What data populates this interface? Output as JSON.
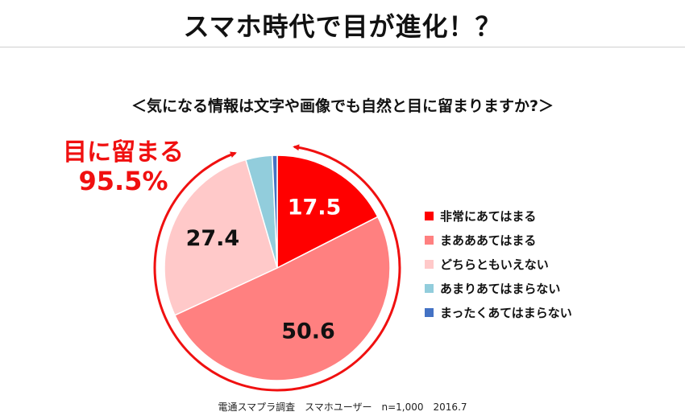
{
  "page": {
    "title": "スマホ時代で目が進化！？",
    "source_note": "電通スマプラ調査　スマホユーザー　n=1,000　2016.7"
  },
  "callout": {
    "label": "目に留まる",
    "value": "95.5%",
    "color": "#f01010"
  },
  "chart_data": {
    "type": "pie",
    "title": "＜気になる情報は文字や画像でも自然と目に留まりますか?＞",
    "start": "12 o'clock, clockwise",
    "legend_position": "right",
    "slices": [
      {
        "name": "非常にあてはまる",
        "value": 17.5,
        "label": "17.5",
        "color": "#ff0000",
        "label_color": "#ffffff"
      },
      {
        "name": "まあああてはまる",
        "value": 50.6,
        "label": "50.6",
        "color": "#ff8080",
        "label_color": "#111111"
      },
      {
        "name": "どちらともいえない",
        "value": 27.4,
        "label": "27.4",
        "color": "#ffc9c9",
        "label_color": "#111111"
      },
      {
        "name": "あまりあてはまらない",
        "value": 3.8,
        "label": "",
        "color": "#92cddc",
        "label_color": "#111111"
      },
      {
        "name": "まったくあてはまらない",
        "value": 0.7,
        "label": "",
        "color": "#4472c4",
        "label_color": "#111111"
      }
    ]
  }
}
